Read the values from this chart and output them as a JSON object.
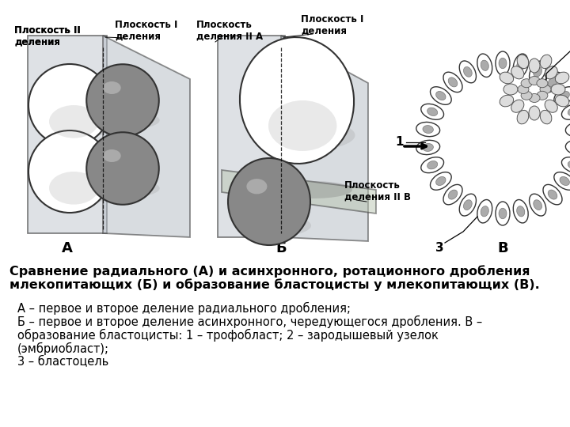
{
  "title_bold": "Сравнение радиального (А) и асинхронного, ротационного дробления\nмлекопитающих (Б) и образование бластоцисты у млекопитающих (В).",
  "description_lines": [
    "А – первое и второе деление радиального дробления;",
    "Б – первое и второе деление асинхронного, чередующегося дробления. В –",
    "образование бластоцисты: 1 – трофобласт; 2 – зародышевый узелок",
    "(эмбриобласт);",
    "3 – бластоцель"
  ],
  "label_A": "А",
  "label_B": "Б",
  "label_V": "В",
  "anno_ploskost2_A": "Плоскость II\nделения",
  "anno_ploskost1_A": "Плоскость I\nделения",
  "anno_ploskost1_B": "Плоскость I\nделения",
  "anno_ploskost2A_B": "Плоскость\nделения II А",
  "anno_ploskost2B_B": "Плоскость\nделения II В",
  "bg_color": "#ffffff",
  "text_color": "#000000",
  "title_fontsize": 11.5,
  "desc_fontsize": 10.5,
  "label_fontsize": 13,
  "anno_fontsize": 8.5
}
